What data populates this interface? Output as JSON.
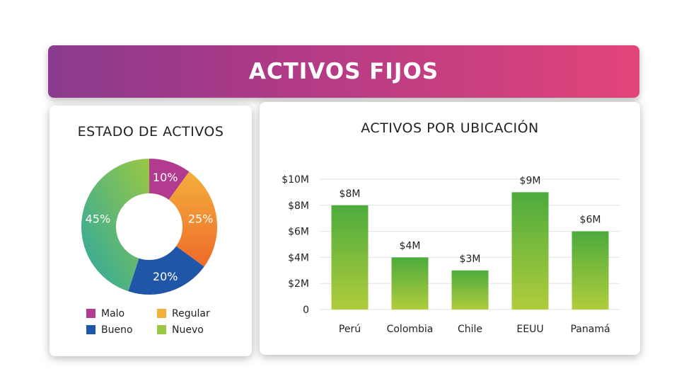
{
  "header": {
    "title": "ACTIVOS FIJOS"
  },
  "colors": {
    "malo": "#b23a8f",
    "regular_start": "#f4b03c",
    "regular_end": "#ee6a2a",
    "bueno": "#1f56a8",
    "nuevo_start": "#9ac843",
    "nuevo_end": "#2aa7a2",
    "bar_top": "#4cab3d",
    "bar_bottom": "#b0cc3c"
  },
  "chart_data": [
    {
      "type": "pie",
      "title": "ESTADO DE ACTIVOS",
      "donut": true,
      "slices": [
        {
          "label": "Malo",
          "value": 10,
          "display": "10%"
        },
        {
          "label": "Regular",
          "value": 25,
          "display": "25%"
        },
        {
          "label": "Bueno",
          "value": 20,
          "display": "20%"
        },
        {
          "label": "Nuevo",
          "value": 45,
          "display": "45%"
        }
      ],
      "legend": {
        "placement": "bottom",
        "items": [
          "Malo",
          "Regular",
          "Bueno",
          "Nuevo"
        ]
      }
    },
    {
      "type": "bar",
      "title": "ACTIVOS POR UBICACIÓN",
      "categories": [
        "Perú",
        "Colombia",
        "Chile",
        "EEUU",
        "Panamá"
      ],
      "values": [
        8,
        4,
        3,
        9,
        6
      ],
      "data_labels": [
        "$8M",
        "$4M",
        "$3M",
        "$9M",
        "$6M"
      ],
      "ylim": [
        0,
        10
      ],
      "yticks": [
        0,
        2,
        4,
        6,
        8,
        10
      ],
      "ytick_labels": [
        "0",
        "$2M",
        "$4M",
        "$6M",
        "$8M",
        "$10M"
      ],
      "grid": true
    }
  ]
}
